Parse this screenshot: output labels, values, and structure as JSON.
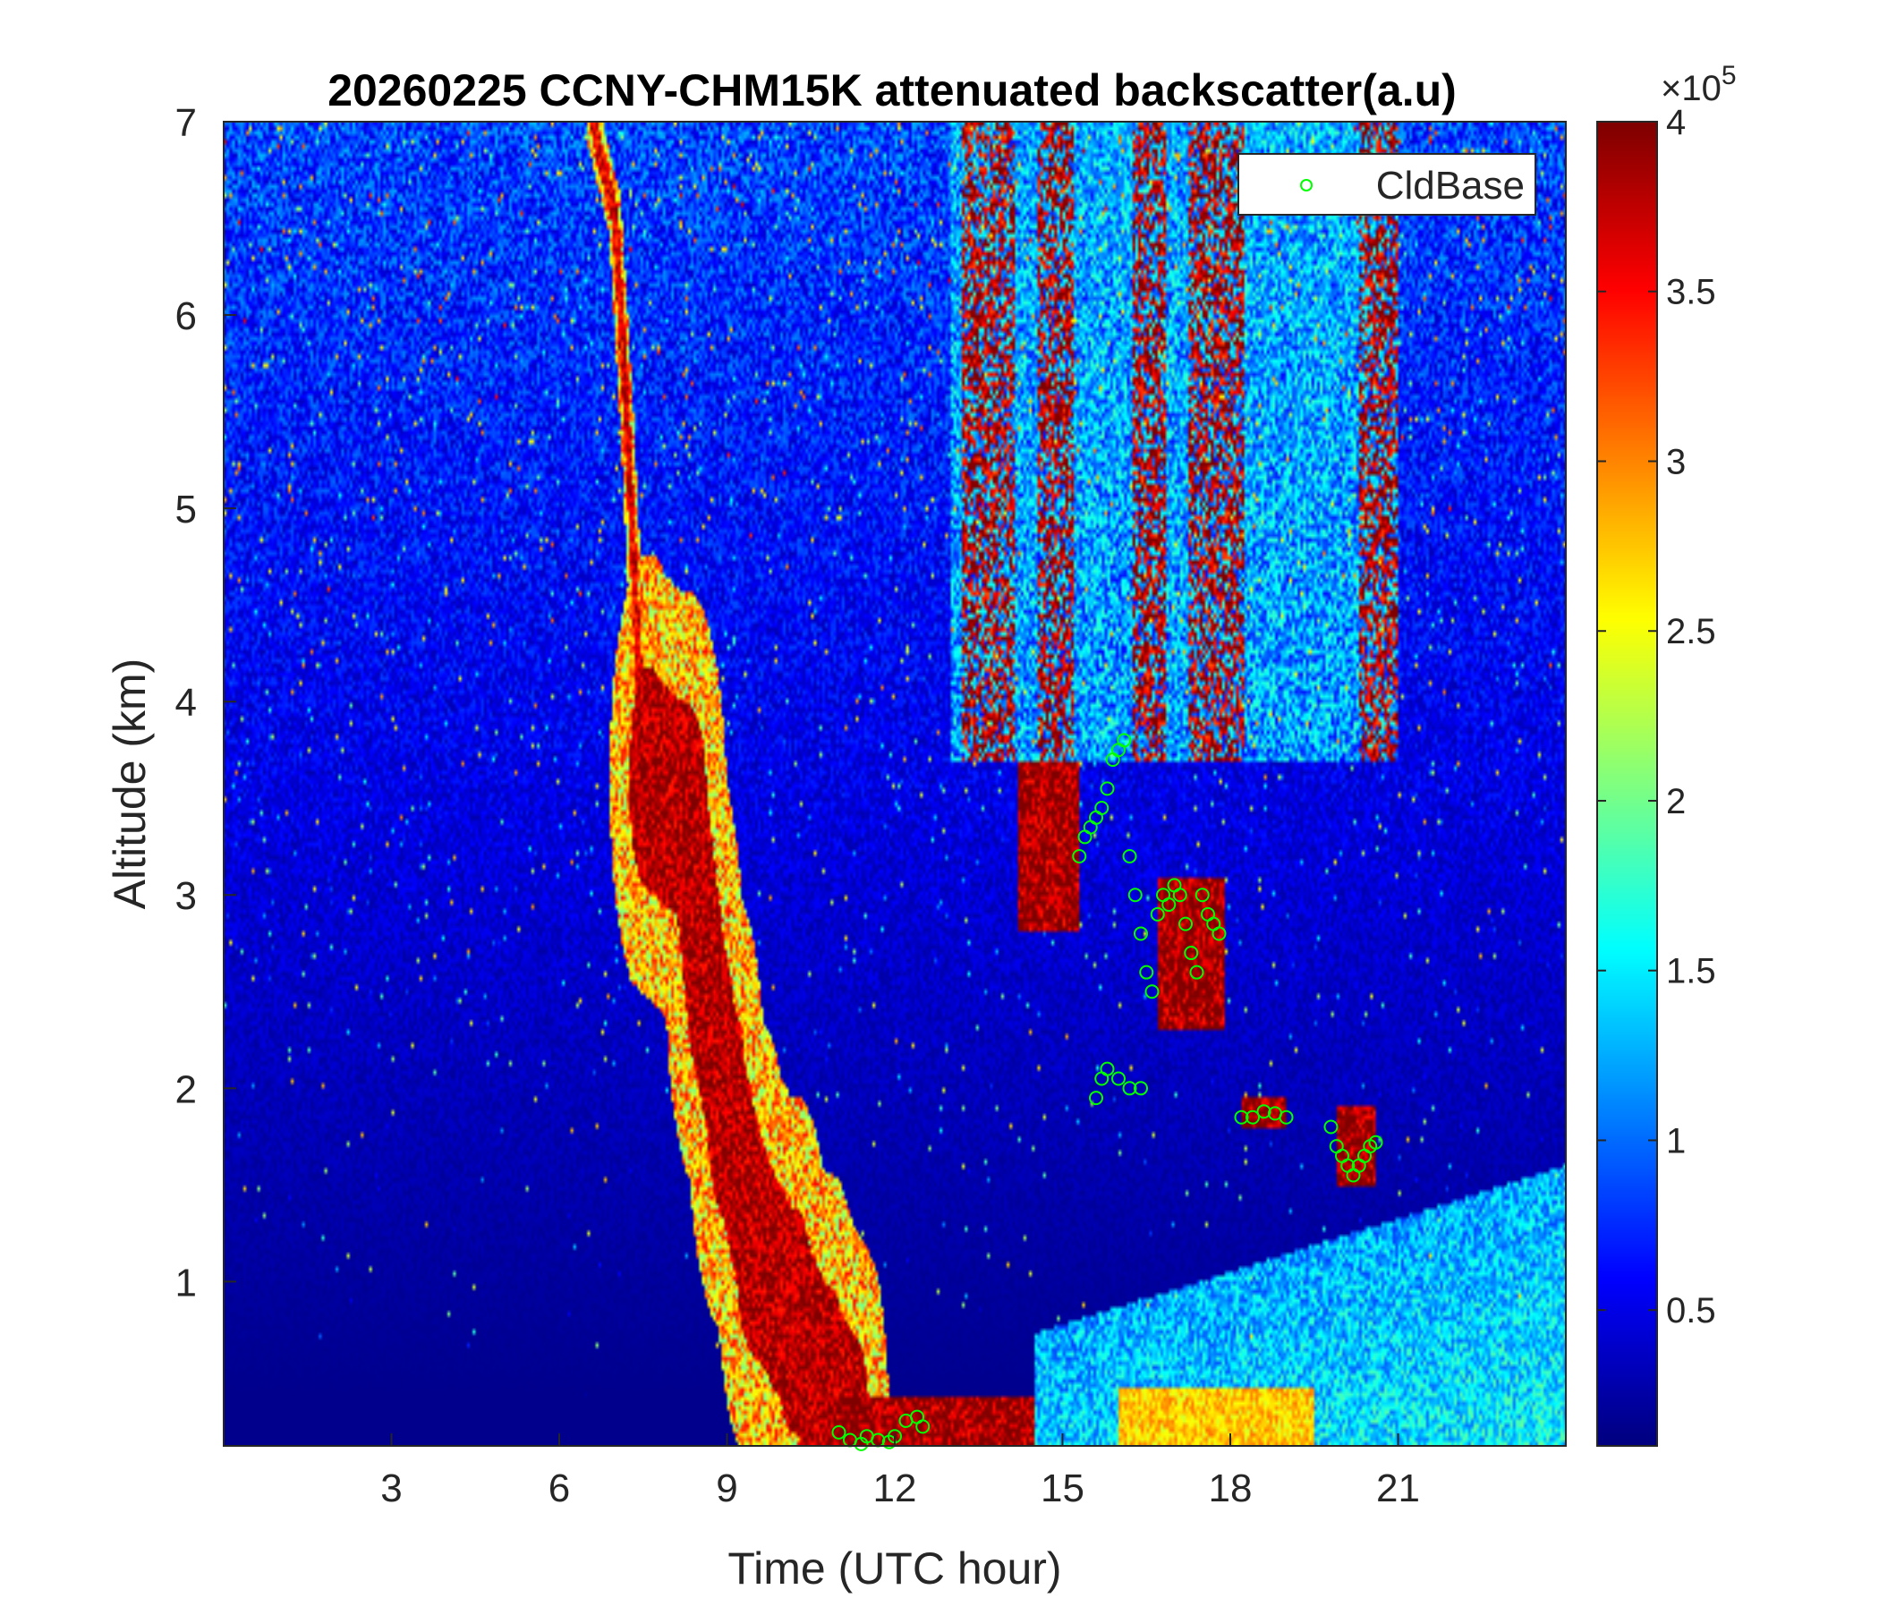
{
  "chart_data": {
    "type": "heatmap",
    "title": "20260225 CCNY-CHM15K attenuated backscatter(a.u)",
    "xlabel": "Time (UTC hour)",
    "ylabel": "Altitude (km)",
    "xlim": [
      0,
      24
    ],
    "ylim": [
      0.15,
      7
    ],
    "xticks": [
      3,
      6,
      9,
      12,
      15,
      18,
      21
    ],
    "yticks": [
      1,
      2,
      3,
      4,
      5,
      6,
      7
    ],
    "colorbar": {
      "colormap": "jet",
      "clim": [
        0.1,
        4
      ],
      "ticks": [
        0.5,
        1,
        1.5,
        2,
        2.5,
        3,
        3.5,
        4
      ],
      "exponent_label": "×10",
      "exponent": "5"
    },
    "legend": {
      "placement": "top-right",
      "entries": [
        {
          "label": "CldBase",
          "marker": "circle",
          "color": "#00ff00"
        }
      ]
    },
    "features": [
      {
        "name": "descending aerosol layer",
        "path": [
          [
            7.6,
            3.6
          ],
          [
            8.3,
            3.4
          ],
          [
            8.6,
            2.6
          ],
          [
            9.0,
            1.9
          ],
          [
            9.5,
            1.2
          ],
          [
            10.2,
            0.8
          ],
          [
            10.8,
            0.4
          ],
          [
            11.2,
            0.2
          ]
        ],
        "width_hours": 0.7,
        "level": 4
      },
      {
        "name": "thin falling streak",
        "path": [
          [
            6.6,
            7.0
          ],
          [
            7.0,
            6.5
          ],
          [
            7.2,
            5.5
          ],
          [
            7.35,
            4.6
          ],
          [
            7.45,
            4.0
          ]
        ],
        "width_hours": 0.12,
        "level": 3.8
      },
      {
        "name": "cloud block",
        "x": [
          14.2,
          15.3
        ],
        "y": [
          2.8,
          3.7
        ],
        "level": 4
      },
      {
        "name": "cloud patch",
        "x": [
          16.7,
          17.9
        ],
        "y": [
          2.3,
          3.1
        ],
        "level": 4
      },
      {
        "name": "low cloud",
        "x": [
          18.2,
          19.0
        ],
        "y": [
          1.8,
          1.95
        ],
        "level": 4
      },
      {
        "name": "low cloud",
        "x": [
          19.9,
          20.6
        ],
        "y": [
          1.5,
          1.9
        ],
        "level": 4
      },
      {
        "name": "boundary layer",
        "x": [
          14.5,
          24.0
        ],
        "y": [
          0.15,
          1.6
        ],
        "level": 1.2
      },
      {
        "name": "surface aerosol",
        "x": [
          16.0,
          19.5
        ],
        "y": [
          0.15,
          0.45
        ],
        "level": 2.8
      },
      {
        "name": "surface layer",
        "x": [
          11.0,
          14.5
        ],
        "y": [
          0.15,
          0.4
        ],
        "level": 4
      },
      {
        "name": "cirrus streaks",
        "x": [
          13.0,
          21.0
        ],
        "y": [
          3.7,
          7.0
        ],
        "level": 2.6
      }
    ],
    "series": [
      {
        "name": "CldBase",
        "x": [
          11.0,
          11.2,
          11.4,
          11.5,
          11.7,
          11.9,
          12.0,
          12.2,
          12.4,
          12.5,
          15.3,
          15.4,
          15.5,
          15.6,
          15.7,
          15.8,
          15.9,
          16.0,
          16.1,
          16.2,
          16.3,
          16.4,
          16.5,
          16.6,
          16.7,
          16.8,
          16.9,
          17.0,
          17.1,
          17.2,
          17.3,
          17.4,
          17.5,
          17.6,
          17.7,
          17.8,
          15.6,
          15.7,
          15.8,
          16.0,
          16.2,
          16.4,
          18.2,
          18.4,
          18.6,
          18.8,
          19.0,
          19.8,
          19.9,
          20.0,
          20.1,
          20.2,
          20.3,
          20.4,
          20.5,
          20.6
        ],
        "y": [
          0.22,
          0.18,
          0.16,
          0.2,
          0.18,
          0.17,
          0.2,
          0.28,
          0.3,
          0.25,
          3.2,
          3.3,
          3.35,
          3.4,
          3.45,
          3.55,
          3.7,
          3.75,
          3.8,
          3.2,
          3.0,
          2.8,
          2.6,
          2.5,
          2.9,
          3.0,
          2.95,
          3.05,
          3.0,
          2.85,
          2.7,
          2.6,
          3.0,
          2.9,
          2.85,
          2.8,
          1.95,
          2.05,
          2.1,
          2.05,
          2.0,
          2.0,
          1.85,
          1.85,
          1.88,
          1.87,
          1.85,
          1.8,
          1.7,
          1.65,
          1.6,
          1.55,
          1.6,
          1.65,
          1.7,
          1.72
        ]
      }
    ],
    "grid": false
  }
}
